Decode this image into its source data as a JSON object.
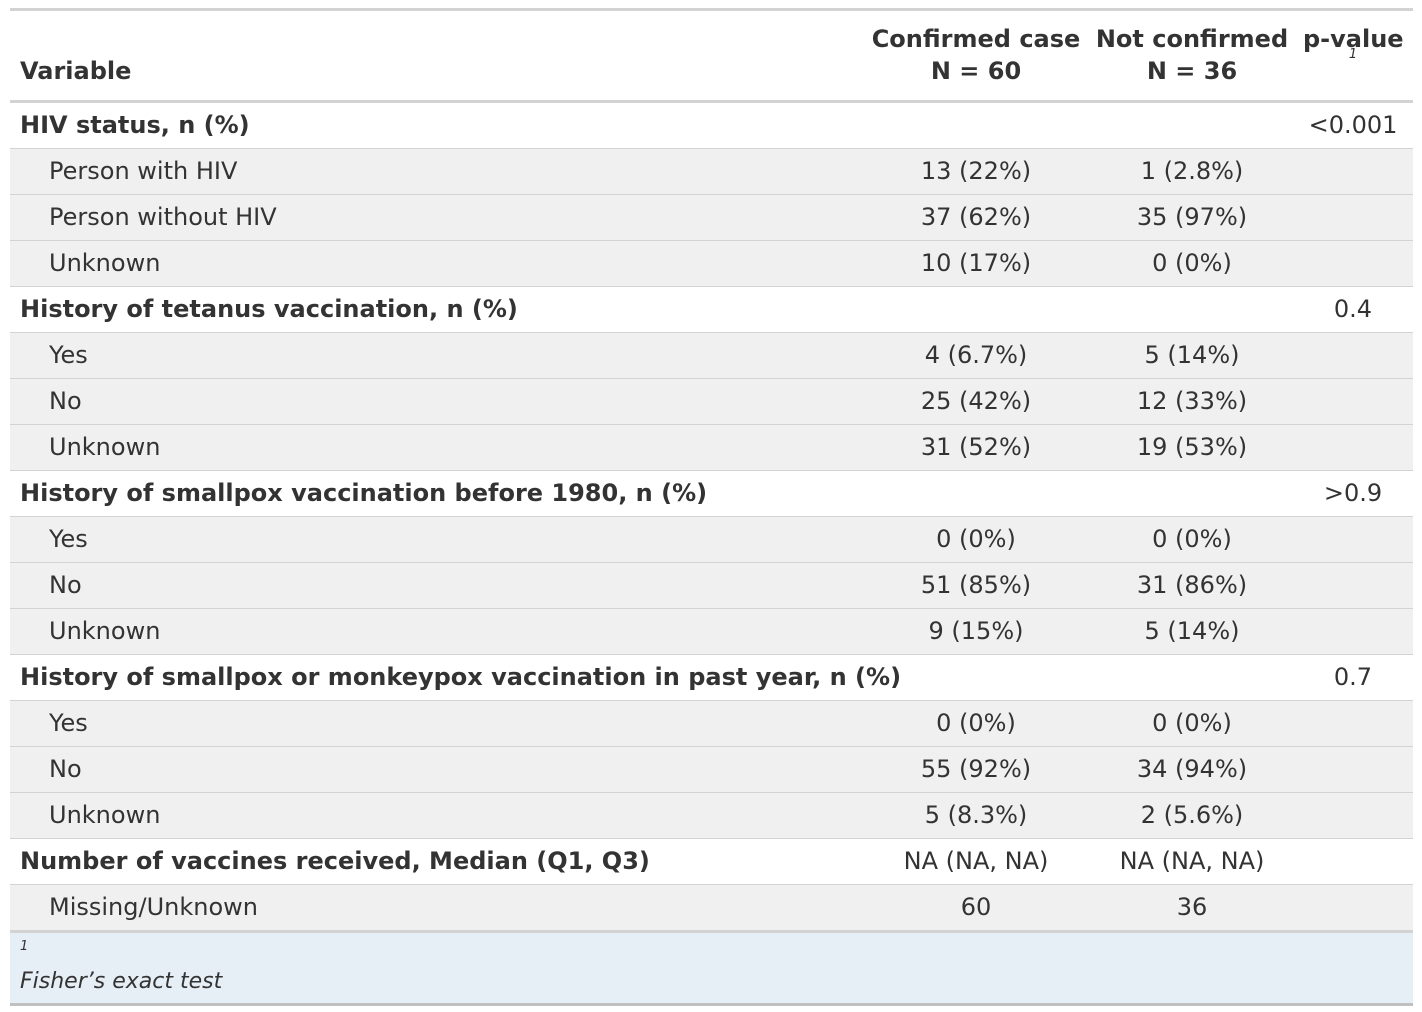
{
  "header": {
    "variable": "Variable",
    "col_a_title": "Confirmed case",
    "col_a_n": "N = 60",
    "col_b_title": "Not confirmed",
    "col_b_n": "N = 36",
    "p_title": "p-value",
    "p_footnote_mark": "1"
  },
  "rows": [
    {
      "kind": "group",
      "label": "HIV status, n (%)",
      "a": "",
      "b": "",
      "p": "<0.001"
    },
    {
      "kind": "level",
      "label": "Person with HIV",
      "a": "13 (22%)",
      "b": "1 (2.8%)",
      "p": ""
    },
    {
      "kind": "level",
      "label": "Person without HIV",
      "a": "37 (62%)",
      "b": "35 (97%)",
      "p": ""
    },
    {
      "kind": "level",
      "label": "Unknown",
      "a": "10 (17%)",
      "b": "0 (0%)",
      "p": ""
    },
    {
      "kind": "group",
      "label": "History of tetanus vaccination, n (%)",
      "a": "",
      "b": "",
      "p": "0.4"
    },
    {
      "kind": "level",
      "label": "Yes",
      "a": "4 (6.7%)",
      "b": "5 (14%)",
      "p": ""
    },
    {
      "kind": "level",
      "label": "No",
      "a": "25 (42%)",
      "b": "12 (33%)",
      "p": ""
    },
    {
      "kind": "level",
      "label": "Unknown",
      "a": "31 (52%)",
      "b": "19 (53%)",
      "p": ""
    },
    {
      "kind": "group",
      "label": "History of smallpox vaccination before 1980, n (%)",
      "a": "",
      "b": "",
      "p": ">0.9"
    },
    {
      "kind": "level",
      "label": "Yes",
      "a": "0 (0%)",
      "b": "0 (0%)",
      "p": ""
    },
    {
      "kind": "level",
      "label": "No",
      "a": "51 (85%)",
      "b": "31 (86%)",
      "p": ""
    },
    {
      "kind": "level",
      "label": "Unknown",
      "a": "9 (15%)",
      "b": "5 (14%)",
      "p": ""
    },
    {
      "kind": "group",
      "label": "History of smallpox or monkeypox vaccination in past year, n (%)",
      "a": "",
      "b": "",
      "p": "0.7"
    },
    {
      "kind": "level",
      "label": "Yes",
      "a": "0 (0%)",
      "b": "0 (0%)",
      "p": ""
    },
    {
      "kind": "level",
      "label": "No",
      "a": "55 (92%)",
      "b": "34 (94%)",
      "p": ""
    },
    {
      "kind": "level",
      "label": "Unknown",
      "a": "5 (8.3%)",
      "b": "2 (5.6%)",
      "p": ""
    },
    {
      "kind": "group",
      "label": "Number of vaccines received, Median (Q1, Q3)",
      "a": "NA (NA, NA)",
      "b": "NA (NA, NA)",
      "p": ""
    },
    {
      "kind": "level",
      "label": "Missing/Unknown",
      "a": "60",
      "b": "36",
      "p": ""
    }
  ],
  "footer": {
    "mark": "1",
    "note": "Fisher’s exact test"
  }
}
